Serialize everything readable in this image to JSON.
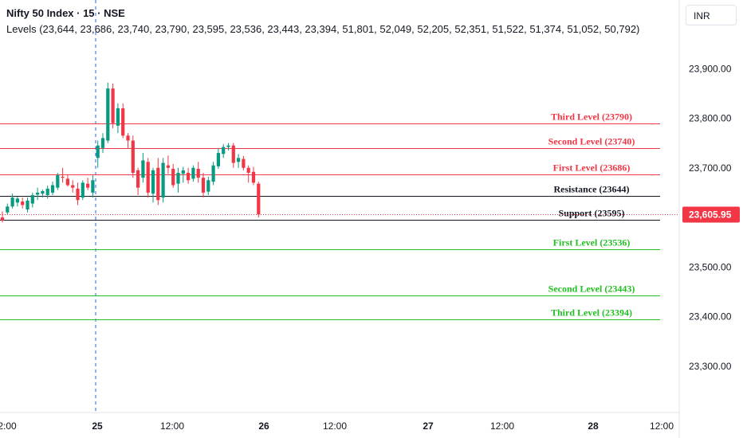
{
  "header": {
    "title": "Nifty 50 Index · 15 · NSE",
    "levels_text": "Levels (23,644, 23,686, 23,740, 23,790, 23,595, 23,536, 23,443, 23,394, 51,801, 52,049, 52,205, 52,351, 51,522, 51,374, 51,052, 50,792)"
  },
  "currency_button": "INR",
  "colors": {
    "up": "#089981",
    "down": "#f23645",
    "resistance_line": "#f23645",
    "support_line": "#22c022",
    "pivot_line": "#131722",
    "price_tag": "#f23645"
  },
  "chart_data": {
    "type": "candlestick",
    "ylim": [
      23250,
      23950
    ],
    "y_ticks": [
      "23,900.00",
      "23,800.00",
      "23,700.00",
      "23,600.00",
      "23,500.00",
      "23,400.00",
      "23,300.00"
    ],
    "y_tick_values": [
      23900,
      23800,
      23700,
      23600,
      23500,
      23400,
      23300
    ],
    "x_ticks": [
      "2:00",
      "25",
      "12:00",
      "26",
      "12:00",
      "27",
      "12:00",
      "28",
      "12:00"
    ],
    "current_price": "23,605.95",
    "current_price_value": 23605.95,
    "levels": [
      {
        "label": "Third Level (23790)",
        "value": 23790,
        "kind": "resistance"
      },
      {
        "label": "Second Level (23740)",
        "value": 23740,
        "kind": "resistance"
      },
      {
        "label": "First Level (23686)",
        "value": 23686,
        "kind": "resistance"
      },
      {
        "label": "Resistance (23644)",
        "value": 23644,
        "kind": "pivot"
      },
      {
        "label": "Support (23595)",
        "value": 23595,
        "kind": "pivot"
      },
      {
        "label": "First Level (23536)",
        "value": 23536,
        "kind": "support"
      },
      {
        "label": "Second Level (23443)",
        "value": 23443,
        "kind": "support"
      },
      {
        "label": "Third Level (23394)",
        "value": 23394,
        "kind": "support"
      }
    ],
    "candles": [
      [
        23600,
        23612,
        23590,
        23594
      ],
      [
        23610,
        23628,
        23605,
        23622
      ],
      [
        23622,
        23648,
        23618,
        23640
      ],
      [
        23630,
        23642,
        23622,
        23638
      ],
      [
        23632,
        23640,
        23618,
        23625
      ],
      [
        23616,
        23640,
        23610,
        23634
      ],
      [
        23628,
        23650,
        23620,
        23645
      ],
      [
        23646,
        23660,
        23635,
        23650
      ],
      [
        23648,
        23656,
        23640,
        23653
      ],
      [
        23645,
        23664,
        23638,
        23658
      ],
      [
        23650,
        23672,
        23645,
        23665
      ],
      [
        23660,
        23690,
        23655,
        23685
      ],
      [
        23682,
        23700,
        23670,
        23680
      ],
      [
        23678,
        23685,
        23662,
        23665
      ],
      [
        23665,
        23675,
        23650,
        23660
      ],
      [
        23658,
        23670,
        23625,
        23635
      ],
      [
        23640,
        23675,
        23635,
        23670
      ],
      [
        23668,
        23680,
        23655,
        23660
      ],
      [
        23650,
        23685,
        23640,
        23675
      ],
      [
        23720,
        23755,
        23700,
        23745
      ],
      [
        23740,
        23770,
        23730,
        23760
      ],
      [
        23755,
        23872,
        23750,
        23860
      ],
      [
        23860,
        23870,
        23780,
        23790
      ],
      [
        23785,
        23830,
        23770,
        23820
      ],
      [
        23820,
        23830,
        23760,
        23765
      ],
      [
        23765,
        23770,
        23740,
        23755
      ],
      [
        23755,
        23765,
        23680,
        23690
      ],
      [
        23695,
        23700,
        23645,
        23660
      ],
      [
        23680,
        23730,
        23670,
        23715
      ],
      [
        23712,
        23720,
        23640,
        23650
      ],
      [
        23648,
        23700,
        23630,
        23695
      ],
      [
        23700,
        23720,
        23625,
        23635
      ],
      [
        23640,
        23720,
        23630,
        23710
      ],
      [
        23705,
        23725,
        23688,
        23700
      ],
      [
        23698,
        23708,
        23660,
        23665
      ],
      [
        23668,
        23700,
        23650,
        23690
      ],
      [
        23688,
        23702,
        23670,
        23695
      ],
      [
        23690,
        23700,
        23668,
        23675
      ],
      [
        23678,
        23705,
        23672,
        23700
      ],
      [
        23698,
        23712,
        23670,
        23680
      ],
      [
        23680,
        23690,
        23640,
        23650
      ],
      [
        23652,
        23682,
        23645,
        23675
      ],
      [
        23672,
        23712,
        23665,
        23705
      ],
      [
        23703,
        23740,
        23698,
        23730
      ],
      [
        23728,
        23748,
        23720,
        23742
      ],
      [
        23742,
        23750,
        23735,
        23745
      ],
      [
        23745,
        23750,
        23700,
        23710
      ],
      [
        23712,
        23728,
        23700,
        23720
      ],
      [
        23718,
        23724,
        23695,
        23700
      ],
      [
        23700,
        23705,
        23670,
        23690
      ],
      [
        23692,
        23702,
        23665,
        23670
      ],
      [
        23668,
        23672,
        23600,
        23606
      ]
    ]
  }
}
